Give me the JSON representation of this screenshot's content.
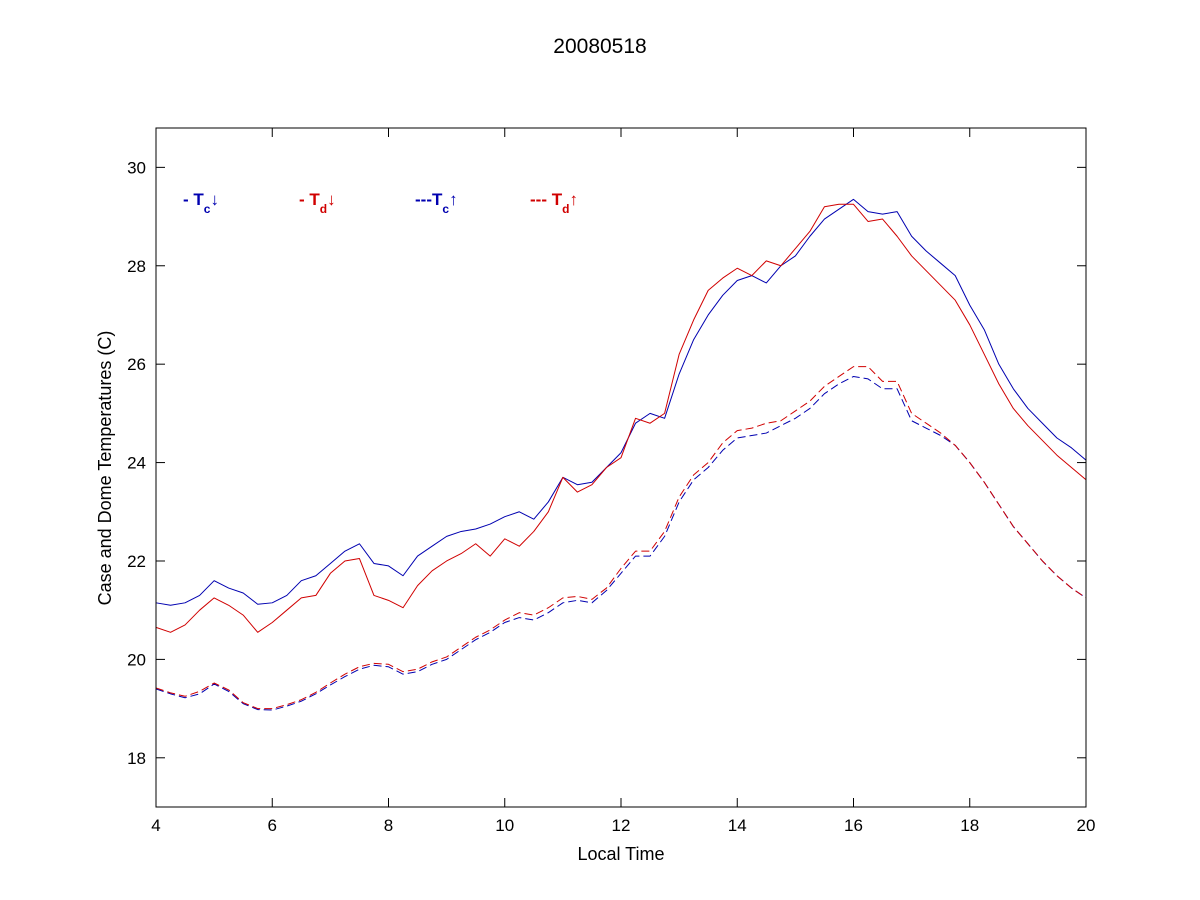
{
  "chart_data": {
    "type": "line",
    "title": "20080518",
    "xlabel": "Local Time",
    "ylabel": "Case and Dome Temperatures (C)",
    "xlim": [
      4,
      20
    ],
    "ylim": [
      17,
      30.8
    ],
    "xticks": [
      4,
      6,
      8,
      10,
      12,
      14,
      16,
      18,
      20
    ],
    "yticks": [
      18,
      20,
      22,
      24,
      26,
      28,
      30
    ],
    "grid": false,
    "legend_placement": "top-left",
    "legend": [
      {
        "prefix": "- T",
        "sub": "c",
        "arrow": "↓",
        "color": "#0000b0",
        "style": "solid"
      },
      {
        "prefix": "- T",
        "sub": "d",
        "arrow": "↓",
        "color": "#d00000",
        "style": "solid"
      },
      {
        "prefix": "---T",
        "sub": "c",
        "arrow": "↑",
        "color": "#0000b0",
        "style": "dashed"
      },
      {
        "prefix": "--- T",
        "sub": "d",
        "arrow": "↑",
        "color": "#d00000",
        "style": "dashed"
      }
    ],
    "x": [
      4.0,
      4.25,
      4.5,
      4.75,
      5.0,
      5.25,
      5.5,
      5.75,
      6.0,
      6.25,
      6.5,
      6.75,
      7.0,
      7.25,
      7.5,
      7.75,
      8.0,
      8.25,
      8.5,
      8.75,
      9.0,
      9.25,
      9.5,
      9.75,
      10.0,
      10.25,
      10.5,
      10.75,
      11.0,
      11.25,
      11.5,
      11.75,
      12.0,
      12.25,
      12.5,
      12.75,
      13.0,
      13.25,
      13.5,
      13.75,
      14.0,
      14.25,
      14.5,
      14.75,
      15.0,
      15.25,
      15.5,
      15.75,
      16.0,
      16.25,
      16.5,
      16.75,
      17.0,
      17.25,
      17.5,
      17.75,
      18.0,
      18.25,
      18.5,
      18.75,
      19.0,
      19.25,
      19.5,
      19.75,
      20.0
    ],
    "series": [
      {
        "key": "tc_down",
        "color": "#0000b0",
        "style": "solid",
        "values": [
          21.15,
          21.1,
          21.15,
          21.3,
          21.6,
          21.45,
          21.35,
          21.12,
          21.15,
          21.3,
          21.6,
          21.7,
          21.95,
          22.2,
          22.35,
          21.95,
          21.9,
          21.7,
          22.1,
          22.3,
          22.5,
          22.6,
          22.65,
          22.75,
          22.9,
          23.0,
          22.85,
          23.2,
          23.7,
          23.55,
          23.6,
          23.9,
          24.2,
          24.8,
          25.0,
          24.9,
          25.8,
          26.5,
          27.0,
          27.4,
          27.7,
          27.8,
          27.65,
          28.0,
          28.2,
          28.6,
          28.95,
          29.15,
          29.35,
          29.1,
          29.05,
          29.1,
          28.6,
          28.3,
          28.05,
          27.8,
          27.2,
          26.7,
          26.0,
          25.5,
          25.1,
          24.8,
          24.5,
          24.3,
          24.05
        ]
      },
      {
        "key": "td_down",
        "color": "#d00000",
        "style": "solid",
        "values": [
          20.65,
          20.55,
          20.7,
          21.0,
          21.25,
          21.1,
          20.9,
          20.55,
          20.75,
          21.0,
          21.25,
          21.3,
          21.75,
          22.0,
          22.05,
          21.3,
          21.2,
          21.05,
          21.5,
          21.8,
          22.0,
          22.15,
          22.35,
          22.1,
          22.45,
          22.3,
          22.6,
          23.0,
          23.7,
          23.4,
          23.55,
          23.9,
          24.1,
          24.9,
          24.8,
          25.0,
          26.2,
          26.9,
          27.5,
          27.75,
          27.95,
          27.8,
          28.1,
          28.0,
          28.35,
          28.7,
          29.2,
          29.25,
          29.25,
          28.9,
          28.95,
          28.6,
          28.2,
          27.9,
          27.6,
          27.3,
          26.8,
          26.2,
          25.6,
          25.1,
          24.75,
          24.45,
          24.15,
          23.9,
          23.65
        ]
      },
      {
        "key": "tc_up",
        "color": "#0000b0",
        "style": "dashed",
        "values": [
          19.4,
          19.3,
          19.22,
          19.3,
          19.5,
          19.35,
          19.1,
          18.98,
          18.97,
          19.05,
          19.15,
          19.3,
          19.48,
          19.65,
          19.8,
          19.88,
          19.85,
          19.7,
          19.75,
          19.9,
          20.0,
          20.2,
          20.4,
          20.55,
          20.75,
          20.85,
          20.8,
          20.95,
          21.15,
          21.2,
          21.15,
          21.4,
          21.75,
          22.1,
          22.1,
          22.5,
          23.2,
          23.65,
          23.9,
          24.25,
          24.5,
          24.55,
          24.6,
          24.75,
          24.9,
          25.1,
          25.4,
          25.6,
          25.75,
          25.7,
          25.5,
          25.5,
          24.85,
          24.7,
          24.55,
          24.35,
          24.0,
          23.6,
          23.15,
          22.7,
          22.35,
          22.0,
          21.7,
          21.45,
          21.25
        ]
      },
      {
        "key": "td_up",
        "color": "#d00000",
        "style": "dashed",
        "values": [
          19.42,
          19.32,
          19.25,
          19.35,
          19.52,
          19.38,
          19.12,
          19.0,
          19.0,
          19.08,
          19.18,
          19.33,
          19.52,
          19.7,
          19.85,
          19.92,
          19.9,
          19.75,
          19.8,
          19.95,
          20.05,
          20.25,
          20.45,
          20.6,
          20.8,
          20.95,
          20.9,
          21.05,
          21.25,
          21.28,
          21.22,
          21.45,
          21.85,
          22.2,
          22.2,
          22.6,
          23.3,
          23.75,
          24.0,
          24.4,
          24.65,
          24.7,
          24.8,
          24.85,
          25.05,
          25.25,
          25.55,
          25.75,
          25.95,
          25.95,
          25.65,
          25.65,
          25.0,
          24.8,
          24.6,
          24.35,
          24.0,
          23.6,
          23.15,
          22.7,
          22.35,
          22.0,
          21.7,
          21.45,
          21.25
        ]
      }
    ]
  }
}
